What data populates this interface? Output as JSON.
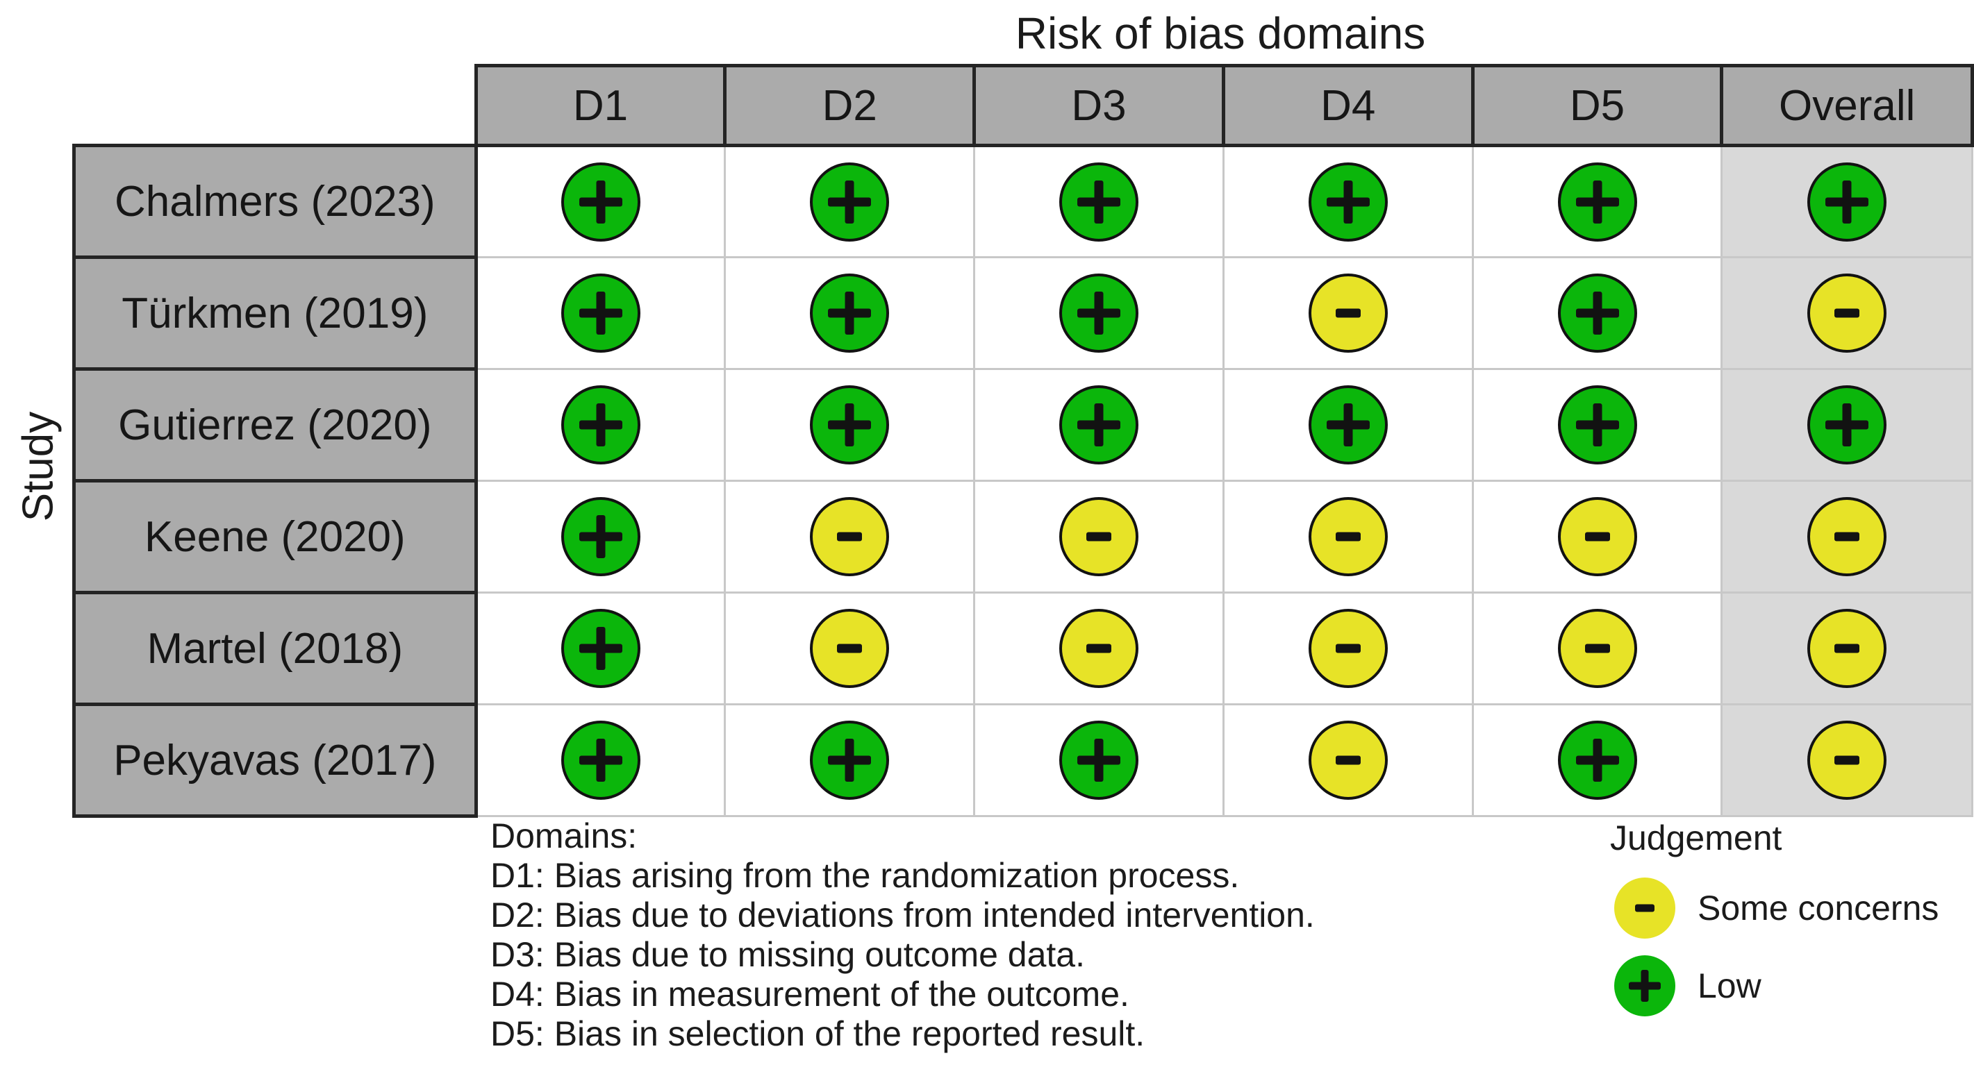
{
  "chart_data": {
    "type": "table",
    "title": "Risk of bias domains",
    "ylabel": "Study",
    "columns": [
      "D1",
      "D2",
      "D3",
      "D4",
      "D5",
      "Overall"
    ],
    "rows": [
      {
        "study": "Chalmers (2023)",
        "judgements": [
          "low",
          "low",
          "low",
          "low",
          "low",
          "low"
        ]
      },
      {
        "study": "Türkmen (2019)",
        "judgements": [
          "low",
          "low",
          "low",
          "some_concerns",
          "low",
          "some_concerns"
        ]
      },
      {
        "study": "Gutierrez (2020)",
        "judgements": [
          "low",
          "low",
          "low",
          "low",
          "low",
          "low"
        ]
      },
      {
        "study": "Keene (2020)",
        "judgements": [
          "low",
          "some_concerns",
          "some_concerns",
          "some_concerns",
          "some_concerns",
          "some_concerns"
        ]
      },
      {
        "study": "Martel (2018)",
        "judgements": [
          "low",
          "some_concerns",
          "some_concerns",
          "some_concerns",
          "some_concerns",
          "some_concerns"
        ]
      },
      {
        "study": "Pekyavas (2017)",
        "judgements": [
          "low",
          "low",
          "low",
          "some_concerns",
          "low",
          "some_concerns"
        ]
      }
    ],
    "judgement_symbols": {
      "low": "plus",
      "some_concerns": "minus"
    },
    "legend_position": "bottom-right"
  },
  "footnotes": {
    "title": "Domains:",
    "lines": [
      "D1: Bias arising from the randomization process.",
      "D2: Bias due to deviations from intended intervention.",
      "D3: Bias due to missing outcome data.",
      "D4: Bias in measurement of the outcome.",
      "D5: Bias in selection of the reported result."
    ]
  },
  "legend": {
    "title": "Judgement",
    "items": [
      {
        "judgement": "some_concerns",
        "symbol": "minus",
        "label": "Some concerns"
      },
      {
        "judgement": "low",
        "symbol": "plus",
        "label": "Low"
      }
    ]
  },
  "colors": {
    "low": "#0BB60B",
    "some_concerns": "#E7E327",
    "header_bg": "#ABABAB",
    "study_bg": "#ABABAB",
    "overall_bg": "#D9D9D9",
    "grid_line": "#C8C8C8",
    "black_border": "#242424",
    "mark_outline": "#121212"
  }
}
